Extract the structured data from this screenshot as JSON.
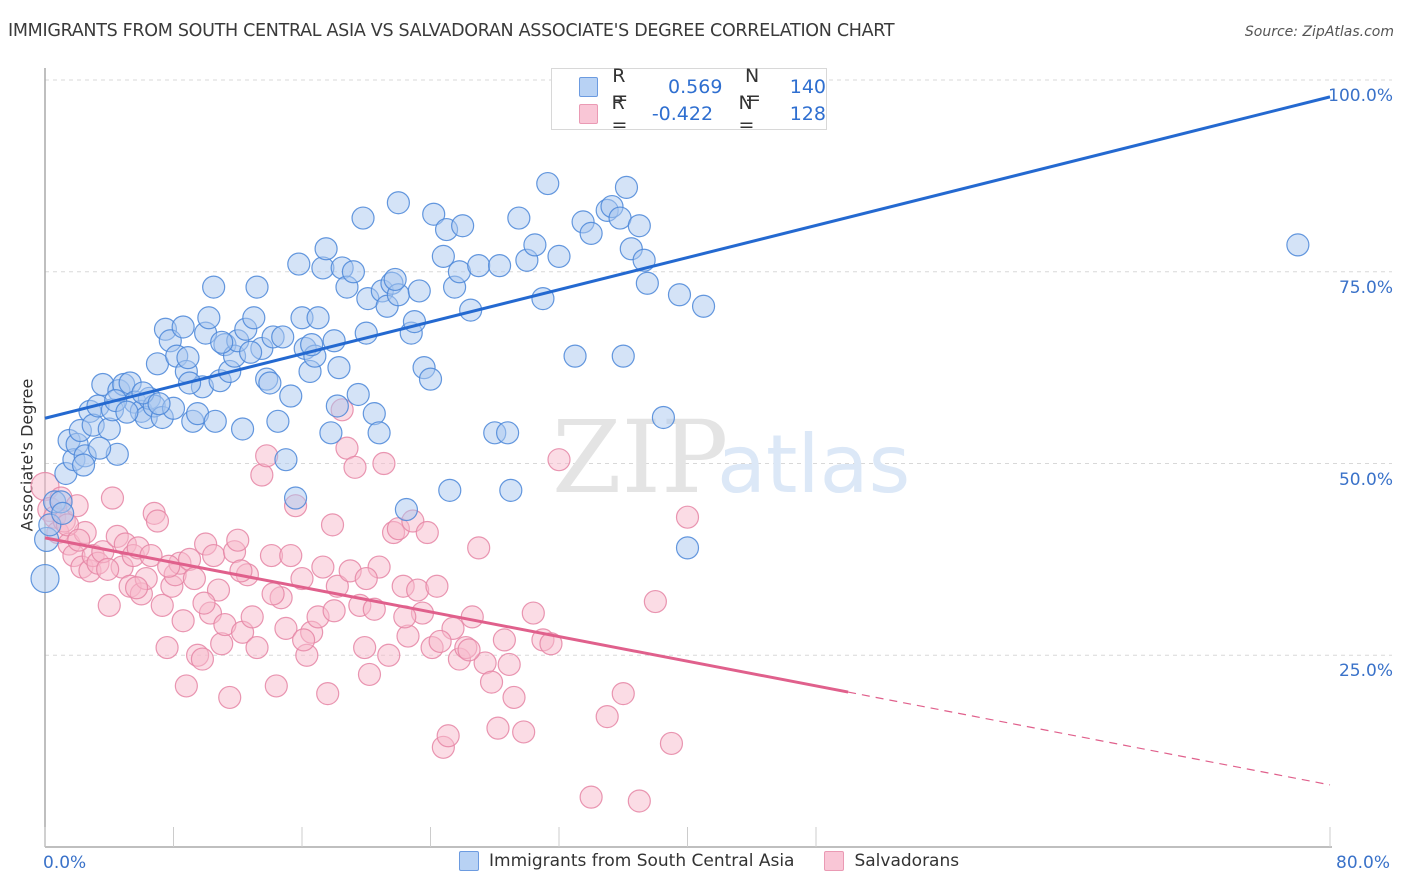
{
  "title": "IMMIGRANTS FROM SOUTH CENTRAL ASIA VS SALVADORAN ASSOCIATE'S DEGREE CORRELATION CHART",
  "source": "Source: ZipAtlas.com",
  "watermark": {
    "zip": "ZIP",
    "atlas": "atlas"
  },
  "legend_stats": [
    {
      "r_label": "R =",
      "r_value": "0.569",
      "n_label": "N =",
      "n_value": "140"
    },
    {
      "r_label": "R =",
      "r_value": "-0.422",
      "n_label": "N =",
      "n_value": "128"
    }
  ],
  "colors": {
    "blue_fill": "#a9c8f0",
    "blue_stroke": "#4a86d8",
    "blue_line": "#2469d0",
    "pink_fill": "#f7b9cc",
    "pink_stroke": "#e585a5",
    "pink_line": "#e0608c",
    "tick_text": "#3a72c9",
    "grid": "#d8d8d8"
  },
  "chart_data": {
    "type": "scatter",
    "title": "IMMIGRANTS FROM SOUTH CENTRAL ASIA VS SALVADORAN ASSOCIATE'S DEGREE CORRELATION CHART",
    "xlabel": "",
    "ylabel": "Associate's Degree",
    "xlim": [
      0,
      80
    ],
    "ylim": [
      0,
      100
    ],
    "x_tick_labels": [
      {
        "value": 0,
        "label": "0.0%"
      },
      {
        "value": 80,
        "label": "80.0%"
      }
    ],
    "x_minor_ticks": [
      0,
      8,
      16,
      24,
      32,
      40,
      48,
      80
    ],
    "y_tick_labels": [
      {
        "value": 100,
        "label": "100.0%"
      },
      {
        "value": 75,
        "label": "75.0%"
      },
      {
        "value": 50,
        "label": "50.0%"
      },
      {
        "value": 25,
        "label": "25.0%"
      }
    ],
    "grid": "horizontal dashed at y ticks",
    "legend_placement": "top-center (stats) and bottom-center (series)",
    "series": [
      {
        "name": "Immigrants from South Central Asia",
        "color": "#4a86d8",
        "R": 0.569,
        "N": 140,
        "trendline": {
          "x": [
            0,
            80
          ],
          "y": [
            55.9,
            97.8
          ],
          "style": "solid"
        },
        "points": [
          [
            0.0,
            35.0
          ],
          [
            0.1,
            40.1
          ],
          [
            0.6,
            45.0
          ],
          [
            1.0,
            45.0
          ],
          [
            1.3,
            48.7
          ],
          [
            1.5,
            53.0
          ],
          [
            1.8,
            50.5
          ],
          [
            2.0,
            52.5
          ],
          [
            2.2,
            54.3
          ],
          [
            2.5,
            51.0
          ],
          [
            2.8,
            56.8
          ],
          [
            3.0,
            55.0
          ],
          [
            3.3,
            57.5
          ],
          [
            3.6,
            60.3
          ],
          [
            4.0,
            54.5
          ],
          [
            4.2,
            57.0
          ],
          [
            4.5,
            51.2
          ],
          [
            4.6,
            59.5
          ],
          [
            4.9,
            60.3
          ],
          [
            5.3,
            60.5
          ],
          [
            5.6,
            58.0
          ],
          [
            6.0,
            56.8
          ],
          [
            6.3,
            56.0
          ],
          [
            6.5,
            58.5
          ],
          [
            6.8,
            57.5
          ],
          [
            7.0,
            63.0
          ],
          [
            7.3,
            56.0
          ],
          [
            7.5,
            67.5
          ],
          [
            7.8,
            66.0
          ],
          [
            8.0,
            57.2
          ],
          [
            8.2,
            64.0
          ],
          [
            8.6,
            67.8
          ],
          [
            8.8,
            62.0
          ],
          [
            8.9,
            63.8
          ],
          [
            9.2,
            55.5
          ],
          [
            9.5,
            56.5
          ],
          [
            9.8,
            60.0
          ],
          [
            10.0,
            67.0
          ],
          [
            10.2,
            69.0
          ],
          [
            10.5,
            73.0
          ],
          [
            10.6,
            55.5
          ],
          [
            10.9,
            60.8
          ],
          [
            11.2,
            65.5
          ],
          [
            11.5,
            62.0
          ],
          [
            11.8,
            64.0
          ],
          [
            12.0,
            66.0
          ],
          [
            12.3,
            54.5
          ],
          [
            12.5,
            67.5
          ],
          [
            13.0,
            69.0
          ],
          [
            13.2,
            73.0
          ],
          [
            13.5,
            65.0
          ],
          [
            13.8,
            61.0
          ],
          [
            14.2,
            66.5
          ],
          [
            14.5,
            55.5
          ],
          [
            14.8,
            66.5
          ],
          [
            15.0,
            50.5
          ],
          [
            15.3,
            58.8
          ],
          [
            15.6,
            45.5
          ],
          [
            15.8,
            76.0
          ],
          [
            16.0,
            69.0
          ],
          [
            16.2,
            65.0
          ],
          [
            16.5,
            62.0
          ],
          [
            16.8,
            64.0
          ],
          [
            17.0,
            69.0
          ],
          [
            17.3,
            75.5
          ],
          [
            17.5,
            78.0
          ],
          [
            17.8,
            54.0
          ],
          [
            18.0,
            66.0
          ],
          [
            18.2,
            57.5
          ],
          [
            18.5,
            75.5
          ],
          [
            18.8,
            73.0
          ],
          [
            19.2,
            75.0
          ],
          [
            19.5,
            59.0
          ],
          [
            19.8,
            82.0
          ],
          [
            20.0,
            67.0
          ],
          [
            20.1,
            71.5
          ],
          [
            20.5,
            56.5
          ],
          [
            20.8,
            54.0
          ],
          [
            21.0,
            72.5
          ],
          [
            21.3,
            70.5
          ],
          [
            21.6,
            73.5
          ],
          [
            22.0,
            72.0
          ],
          [
            22.0,
            84.0
          ],
          [
            22.5,
            44.0
          ],
          [
            22.8,
            67.0
          ],
          [
            23.3,
            72.5
          ],
          [
            23.6,
            62.5
          ],
          [
            24.0,
            61.0
          ],
          [
            24.2,
            82.5
          ],
          [
            24.8,
            77.0
          ],
          [
            25.0,
            80.5
          ],
          [
            25.2,
            46.5
          ],
          [
            25.5,
            73.0
          ],
          [
            25.8,
            75.0
          ],
          [
            26.0,
            81.0
          ],
          [
            27.0,
            75.8
          ],
          [
            28.0,
            54.0
          ],
          [
            28.3,
            75.8
          ],
          [
            28.8,
            54.0
          ],
          [
            29.0,
            46.5
          ],
          [
            29.5,
            82.0
          ],
          [
            30.0,
            76.5
          ],
          [
            31.0,
            71.5
          ],
          [
            31.3,
            86.5
          ],
          [
            32.0,
            77.0
          ],
          [
            33.0,
            64.0
          ],
          [
            33.5,
            81.5
          ],
          [
            34.0,
            80.0
          ],
          [
            35.0,
            83.0
          ],
          [
            35.3,
            83.5
          ],
          [
            35.8,
            82.0
          ],
          [
            36.0,
            64.0
          ],
          [
            36.2,
            86.0
          ],
          [
            36.5,
            78.0
          ],
          [
            37.0,
            81.0
          ],
          [
            37.3,
            76.5
          ],
          [
            37.5,
            73.5
          ],
          [
            38.5,
            56.0
          ],
          [
            39.5,
            72.0
          ],
          [
            40.0,
            39.0
          ],
          [
            41.0,
            70.5
          ],
          [
            78.0,
            78.5
          ],
          [
            0.3,
            42.0
          ],
          [
            1.1,
            43.5
          ],
          [
            2.4,
            49.8
          ],
          [
            3.4,
            52.0
          ],
          [
            4.4,
            58.2
          ],
          [
            5.1,
            56.7
          ],
          [
            6.1,
            59.2
          ],
          [
            7.1,
            57.8
          ],
          [
            9.0,
            60.5
          ],
          [
            11.0,
            65.8
          ],
          [
            12.8,
            64.5
          ],
          [
            14.0,
            60.5
          ],
          [
            16.6,
            65.5
          ],
          [
            18.3,
            62.5
          ],
          [
            21.8,
            74.0
          ],
          [
            23.0,
            68.5
          ],
          [
            26.5,
            70.0
          ],
          [
            30.5,
            78.5
          ]
        ]
      },
      {
        "name": "Salvadorans",
        "color": "#e585a5",
        "R": -0.422,
        "N": 128,
        "trendline": {
          "x": [
            0,
            50
          ],
          "y": [
            40.3,
            20.2
          ],
          "style": "solid",
          "extension": {
            "x": [
              50,
              80
            ],
            "y": [
              20.2,
              8.1
            ],
            "style": "dashed"
          }
        },
        "points": [
          [
            0.0,
            47.0
          ],
          [
            0.3,
            44.0
          ],
          [
            0.6,
            43.0
          ],
          [
            0.8,
            41.0
          ],
          [
            1.0,
            45.5
          ],
          [
            1.2,
            42.5
          ],
          [
            1.5,
            39.5
          ],
          [
            1.8,
            38.0
          ],
          [
            2.0,
            44.5
          ],
          [
            2.3,
            36.5
          ],
          [
            2.5,
            41.0
          ],
          [
            2.8,
            36.0
          ],
          [
            3.0,
            38.0
          ],
          [
            3.3,
            37.0
          ],
          [
            3.6,
            38.5
          ],
          [
            4.0,
            31.5
          ],
          [
            4.2,
            45.5
          ],
          [
            4.5,
            40.5
          ],
          [
            4.8,
            36.5
          ],
          [
            5.0,
            39.5
          ],
          [
            5.3,
            34.0
          ],
          [
            5.5,
            38.0
          ],
          [
            5.8,
            39.0
          ],
          [
            6.0,
            33.0
          ],
          [
            6.3,
            35.0
          ],
          [
            6.6,
            38.0
          ],
          [
            6.8,
            43.5
          ],
          [
            7.0,
            42.5
          ],
          [
            7.3,
            31.5
          ],
          [
            7.6,
            26.0
          ],
          [
            7.9,
            34.0
          ],
          [
            8.1,
            35.5
          ],
          [
            8.4,
            37.0
          ],
          [
            8.6,
            29.5
          ],
          [
            8.8,
            21.0
          ],
          [
            9.0,
            37.5
          ],
          [
            9.3,
            35.0
          ],
          [
            9.5,
            25.0
          ],
          [
            9.8,
            24.5
          ],
          [
            10.0,
            39.5
          ],
          [
            10.3,
            30.5
          ],
          [
            10.5,
            38.0
          ],
          [
            10.8,
            33.5
          ],
          [
            11.0,
            26.5
          ],
          [
            11.2,
            29.0
          ],
          [
            11.5,
            19.5
          ],
          [
            11.8,
            38.5
          ],
          [
            12.0,
            40.0
          ],
          [
            12.3,
            28.0
          ],
          [
            12.6,
            35.5
          ],
          [
            12.9,
            30.0
          ],
          [
            13.2,
            26.0
          ],
          [
            13.5,
            48.5
          ],
          [
            13.8,
            51.0
          ],
          [
            14.1,
            38.0
          ],
          [
            14.4,
            21.0
          ],
          [
            14.7,
            32.5
          ],
          [
            15.0,
            28.5
          ],
          [
            15.3,
            38.0
          ],
          [
            15.6,
            44.5
          ],
          [
            16.0,
            35.0
          ],
          [
            16.3,
            25.0
          ],
          [
            16.6,
            28.0
          ],
          [
            17.0,
            30.0
          ],
          [
            17.3,
            36.5
          ],
          [
            17.6,
            20.0
          ],
          [
            17.9,
            42.0
          ],
          [
            18.2,
            34.0
          ],
          [
            18.5,
            57.0
          ],
          [
            18.8,
            52.0
          ],
          [
            19.0,
            36.0
          ],
          [
            19.3,
            49.5
          ],
          [
            19.6,
            31.5
          ],
          [
            19.9,
            26.0
          ],
          [
            20.2,
            22.5
          ],
          [
            20.5,
            31.0
          ],
          [
            20.8,
            36.5
          ],
          [
            21.1,
            50.0
          ],
          [
            21.4,
            25.0
          ],
          [
            21.7,
            41.0
          ],
          [
            22.0,
            41.5
          ],
          [
            22.3,
            34.0
          ],
          [
            22.6,
            27.5
          ],
          [
            22.9,
            42.5
          ],
          [
            23.2,
            33.5
          ],
          [
            23.5,
            30.5
          ],
          [
            23.8,
            41.0
          ],
          [
            24.1,
            26.0
          ],
          [
            24.4,
            34.0
          ],
          [
            24.8,
            13.0
          ],
          [
            25.1,
            14.5
          ],
          [
            25.4,
            28.5
          ],
          [
            25.8,
            24.5
          ],
          [
            26.2,
            26.0
          ],
          [
            26.6,
            30.0
          ],
          [
            27.0,
            39.0
          ],
          [
            27.4,
            24.0
          ],
          [
            27.8,
            21.5
          ],
          [
            28.2,
            15.5
          ],
          [
            28.6,
            27.0
          ],
          [
            29.2,
            19.5
          ],
          [
            29.8,
            15.0
          ],
          [
            30.4,
            30.5
          ],
          [
            31.0,
            27.0
          ],
          [
            32.0,
            50.5
          ],
          [
            34.0,
            6.5
          ],
          [
            35.0,
            17.0
          ],
          [
            36.0,
            20.0
          ],
          [
            37.0,
            6.0
          ],
          [
            38.0,
            32.0
          ],
          [
            39.0,
            13.5
          ],
          [
            40.0,
            43.0
          ],
          [
            1.4,
            42.0
          ],
          [
            2.1,
            40.0
          ],
          [
            3.9,
            36.2
          ],
          [
            5.7,
            33.8
          ],
          [
            7.7,
            36.6
          ],
          [
            9.9,
            31.8
          ],
          [
            12.2,
            36.0
          ],
          [
            14.2,
            33.0
          ],
          [
            16.1,
            27.0
          ],
          [
            18.0,
            30.8
          ],
          [
            20.0,
            35.0
          ],
          [
            22.4,
            30.0
          ],
          [
            24.6,
            26.8
          ],
          [
            26.4,
            25.7
          ],
          [
            28.9,
            23.8
          ],
          [
            31.5,
            26.5
          ]
        ]
      }
    ],
    "bottom_legend": [
      "Immigrants from South Central Asia",
      "Salvadorans"
    ]
  }
}
